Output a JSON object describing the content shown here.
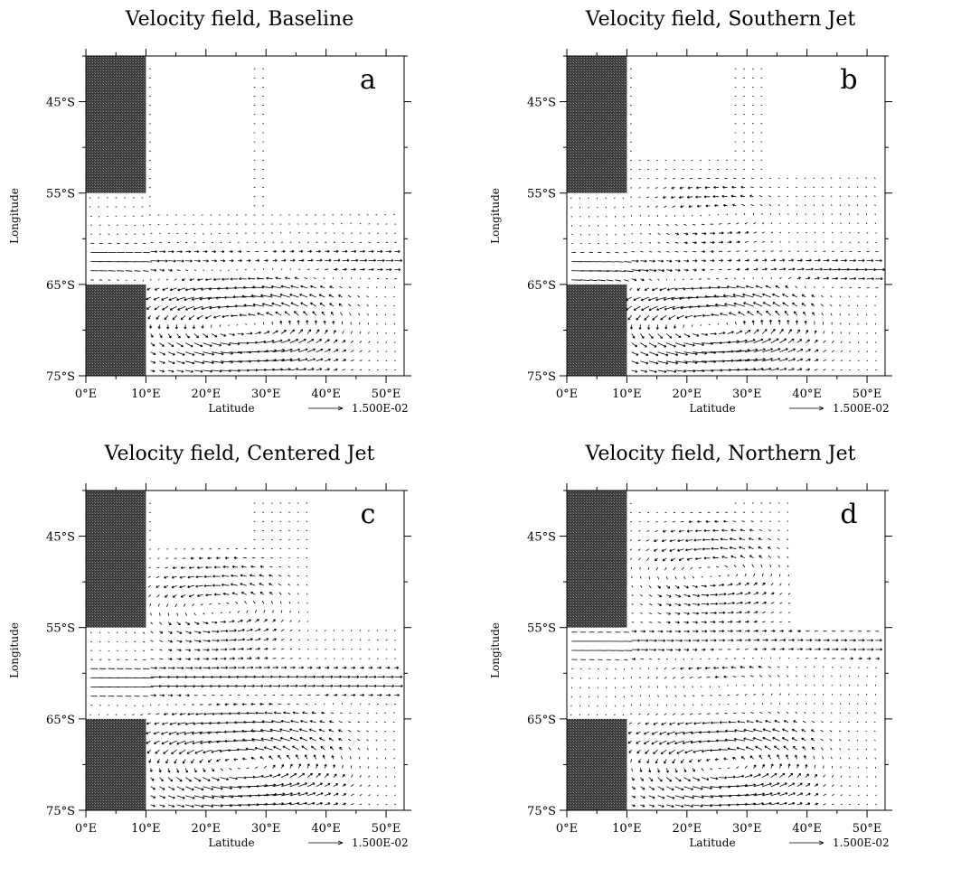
{
  "colors": {
    "land": "#3a3a3a",
    "arrow": "#000000",
    "frame": "#000000"
  },
  "chart_data": [
    {
      "type": "vector-field",
      "title": "Velocity field, Baseline",
      "panel_letter": "a",
      "xlabel": "Latitude",
      "ylabel": "Longitude",
      "xticks": [
        "0°E",
        "10°E",
        "20°E",
        "30°E",
        "40°E",
        "50°E"
      ],
      "yticks": [
        "45°S",
        "55°S",
        "65°S",
        "75°S"
      ],
      "xlim": [
        0,
        53
      ],
      "ylim": [
        -75,
        -40
      ],
      "reference_vector": "1.500E-02",
      "land": [
        {
          "x": [
            0,
            10
          ],
          "y": [
            -55,
            -40
          ]
        },
        {
          "x": [
            0,
            10
          ],
          "y": [
            -75,
            -65
          ]
        }
      ],
      "open_region_top": [
        {
          "x": [
            12,
            27
          ],
          "y": [
            -57,
            -40
          ]
        },
        {
          "x": [
            31,
            53
          ],
          "y": [
            -57,
            -40
          ]
        }
      ],
      "jet": {
        "y": -62.5,
        "strength": 1.0
      },
      "gyres": [
        {
          "x": 26,
          "y": -69.5,
          "rx": 14,
          "ry": 4.5,
          "strength": 1.0
        }
      ]
    },
    {
      "type": "vector-field",
      "title": "Velocity field, Southern Jet",
      "panel_letter": "b",
      "xlabel": "Latitude",
      "ylabel": "Longitude",
      "xticks": [
        "0°E",
        "10°E",
        "20°E",
        "30°E",
        "40°E",
        "50°E"
      ],
      "yticks": [
        "45°S",
        "55°S",
        "65°S",
        "75°S"
      ],
      "xlim": [
        0,
        53
      ],
      "ylim": [
        -75,
        -40
      ],
      "reference_vector": "1.500E-02",
      "land": [
        {
          "x": [
            0,
            10
          ],
          "y": [
            -55,
            -40
          ]
        },
        {
          "x": [
            0,
            10
          ],
          "y": [
            -75,
            -65
          ]
        }
      ],
      "open_region_top": [
        {
          "x": [
            12,
            27
          ],
          "y": [
            -51,
            -40
          ]
        },
        {
          "x": [
            33,
            53
          ],
          "y": [
            -53,
            -40
          ]
        }
      ],
      "jet": {
        "y": -63.5,
        "strength": 1.2
      },
      "gyres": [
        {
          "x": 24,
          "y": -57.5,
          "rx": 10,
          "ry": 3,
          "strength": 0.6
        },
        {
          "x": 24,
          "y": -69.5,
          "rx": 14,
          "ry": 4.5,
          "strength": 1.1
        }
      ]
    },
    {
      "type": "vector-field",
      "title": "Velocity field, Centered Jet",
      "panel_letter": "c",
      "xlabel": "Latitude",
      "ylabel": "Longitude",
      "xticks": [
        "0°E",
        "10°E",
        "20°E",
        "30°E",
        "40°E",
        "50°E"
      ],
      "yticks": [
        "45°S",
        "55°S",
        "65°S",
        "75°S"
      ],
      "xlim": [
        0,
        53
      ],
      "ylim": [
        -75,
        -40
      ],
      "reference_vector": "1.500E-02",
      "land": [
        {
          "x": [
            0,
            10
          ],
          "y": [
            -55,
            -40
          ]
        },
        {
          "x": [
            0,
            10
          ],
          "y": [
            -75,
            -65
          ]
        }
      ],
      "open_region_top": [
        {
          "x": [
            12,
            27
          ],
          "y": [
            -46,
            -40
          ]
        },
        {
          "x": [
            37,
            53
          ],
          "y": [
            -55,
            -40
          ]
        }
      ],
      "jet": {
        "y": -61,
        "strength": 1.1
      },
      "gyres": [
        {
          "x": 22,
          "y": -53,
          "rx": 10,
          "ry": 4,
          "strength": 0.8
        },
        {
          "x": 26,
          "y": -70,
          "rx": 14,
          "ry": 4.5,
          "strength": 1.0
        }
      ]
    },
    {
      "type": "vector-field",
      "title": "Velocity field, Northern Jet",
      "panel_letter": "d",
      "xlabel": "Latitude",
      "ylabel": "Longitude",
      "xticks": [
        "0°E",
        "10°E",
        "20°E",
        "30°E",
        "40°E",
        "50°E"
      ],
      "yticks": [
        "45°S",
        "55°S",
        "65°S",
        "75°S"
      ],
      "xlim": [
        0,
        53
      ],
      "ylim": [
        -75,
        -40
      ],
      "reference_vector": "1.500E-02",
      "land": [
        {
          "x": [
            0,
            10
          ],
          "y": [
            -55,
            -40
          ]
        },
        {
          "x": [
            0,
            10
          ],
          "y": [
            -75,
            -65
          ]
        }
      ],
      "open_region_top": [
        {
          "x": [
            12,
            27
          ],
          "y": [
            -42,
            -40
          ]
        },
        {
          "x": [
            38,
            53
          ],
          "y": [
            -55,
            -40
          ]
        }
      ],
      "jet": {
        "y": -57,
        "strength": 0.9
      },
      "gyres": [
        {
          "x": 24,
          "y": -49,
          "rx": 10,
          "ry": 4,
          "strength": 0.8
        },
        {
          "x": 26,
          "y": -61,
          "rx": 12,
          "ry": 3,
          "strength": 0.6
        },
        {
          "x": 26,
          "y": -70,
          "rx": 13,
          "ry": 4.5,
          "strength": 1.0
        }
      ]
    }
  ]
}
